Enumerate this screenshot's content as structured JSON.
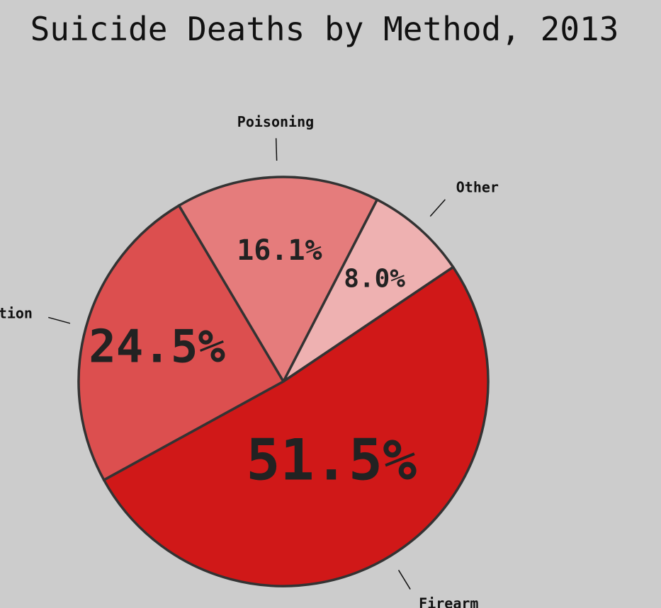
{
  "chart_data": {
    "type": "pie",
    "title": "Suicide Deaths by Method, 2013",
    "start_angle_deg": 34,
    "direction": "counterclockwise",
    "slices": [
      {
        "label": "Other",
        "value": 8.0,
        "value_label": "8.0%",
        "color": "#eeb1b1"
      },
      {
        "label": "Poisoning",
        "value": 16.1,
        "value_label": "16.1%",
        "color": "#e57c7c"
      },
      {
        "label": "Suffocation",
        "value": 24.5,
        "value_label": "24.5%",
        "color": "#dc4f4f"
      },
      {
        "label": "Firearm",
        "value": 51.5,
        "value_label": "51.5%",
        "color": "#d01818"
      }
    ],
    "outline_color": "#333333",
    "background_color": "#cccccc"
  }
}
